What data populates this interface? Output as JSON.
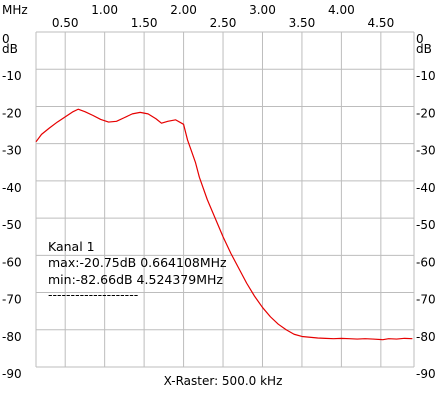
{
  "chart_data": {
    "type": "line",
    "x_unit_label": "MHz",
    "y_unit_label": "dB",
    "xlim": [
      0.13,
      4.92
    ],
    "ylim": [
      -90,
      0
    ],
    "top_ticks": [
      "1.00",
      "2.00",
      "3.00",
      "4.00"
    ],
    "top_tick_values": [
      1.0,
      2.0,
      3.0,
      4.0
    ],
    "bottom_ticks": [
      "0.50",
      "1.50",
      "2.50",
      "3.50",
      "4.50"
    ],
    "bottom_tick_values": [
      0.5,
      1.5,
      2.5,
      3.5,
      4.5
    ],
    "y_ticks": [
      "0",
      "-10",
      "-20",
      "-30",
      "-40",
      "-50",
      "-60",
      "-70",
      "-80",
      "-90"
    ],
    "y_tick_values": [
      0,
      -10,
      -20,
      -30,
      -40,
      -50,
      -60,
      -70,
      -80,
      -90
    ],
    "grid": true,
    "line_color": "#e60000",
    "xlabel": "X-Raster: 500.0 kHz",
    "legend": {
      "title": "Kanal 1",
      "max": "max:-20.75dB 0.664108MHz",
      "min": "min:-82.66dB 4.524379MHz",
      "separator": "--------------------"
    },
    "series": [
      {
        "x": [
          0.13,
          0.2,
          0.3,
          0.4,
          0.5,
          0.6,
          0.664,
          0.75,
          0.85,
          0.95,
          1.05,
          1.15,
          1.25,
          1.35,
          1.45,
          1.55,
          1.65,
          1.72,
          1.8,
          1.9,
          2.0,
          2.05,
          2.1,
          2.15,
          2.2,
          2.3,
          2.4,
          2.5,
          2.6,
          2.7,
          2.8,
          2.9,
          3.0,
          3.1,
          3.2,
          3.3,
          3.4,
          3.5,
          3.6,
          3.7,
          3.8,
          3.9,
          4.0,
          4.1,
          4.2,
          4.3,
          4.4,
          4.524,
          4.6,
          4.7,
          4.8,
          4.9
        ],
        "y": [
          -29.5,
          -27.5,
          -25.8,
          -24.2,
          -22.8,
          -21.4,
          -20.75,
          -21.4,
          -22.4,
          -23.5,
          -24.2,
          -24.0,
          -23.0,
          -22.0,
          -21.6,
          -22.0,
          -23.3,
          -24.5,
          -24.0,
          -23.6,
          -24.8,
          -29,
          -32,
          -35,
          -39,
          -45,
          -50,
          -55,
          -59.5,
          -63.5,
          -67.5,
          -71,
          -74,
          -76.5,
          -78.5,
          -80,
          -81.2,
          -81.8,
          -82.0,
          -82.2,
          -82.3,
          -82.4,
          -82.3,
          -82.4,
          -82.5,
          -82.4,
          -82.5,
          -82.66,
          -82.4,
          -82.5,
          -82.3,
          -82.4
        ]
      }
    ]
  }
}
